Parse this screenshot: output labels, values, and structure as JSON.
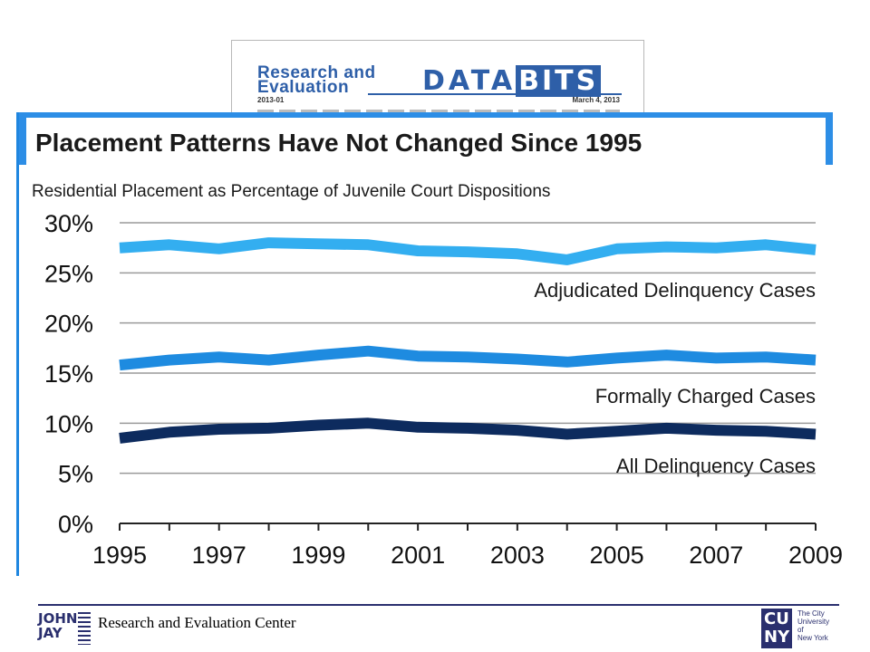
{
  "databits": {
    "title_line1": "Research and",
    "title_line2": "Evaluation",
    "logo_data": "DATA",
    "logo_bits": "BITS",
    "number": "2013-01",
    "date": "March 4, 2013"
  },
  "slide": {
    "title": "Placement Patterns Have Not Changed Since 1995",
    "subtitle": "Residential Placement as Percentage of Juvenile Court Dispositions"
  },
  "chart_data": {
    "type": "line",
    "title": "Placement Patterns Have Not Changed Since 1995",
    "subtitle": "Residential Placement as Percentage of Juvenile Court Dispositions",
    "x": [
      1995,
      1996,
      1997,
      1998,
      1999,
      2000,
      2001,
      2002,
      2003,
      2004,
      2005,
      2006,
      2007,
      2008,
      2009
    ],
    "x_tick_labels": [
      "1995",
      "1997",
      "1999",
      "2001",
      "2003",
      "2005",
      "2007",
      "2009"
    ],
    "ylim": [
      0,
      30
    ],
    "y_ticks": [
      0,
      5,
      10,
      15,
      20,
      25,
      30
    ],
    "y_tick_labels": [
      "0%",
      "5%",
      "10%",
      "15%",
      "20%",
      "25%",
      "30%"
    ],
    "grid": true,
    "series": [
      {
        "name": "Adjudicated Delinquency Cases",
        "color": "#33aef0",
        "values": [
          27.5,
          27.8,
          27.4,
          28.0,
          27.9,
          27.8,
          27.2,
          27.1,
          26.9,
          26.3,
          27.4,
          27.6,
          27.5,
          27.8,
          27.3
        ]
      },
      {
        "name": "Formally Charged Cases",
        "color": "#1e8be0",
        "values": [
          15.8,
          16.3,
          16.6,
          16.3,
          16.8,
          17.2,
          16.7,
          16.6,
          16.4,
          16.1,
          16.5,
          16.8,
          16.5,
          16.6,
          16.3
        ]
      },
      {
        "name": "All Delinquency Cases",
        "color": "#0d2b5e",
        "values": [
          8.5,
          9.1,
          9.4,
          9.5,
          9.8,
          10.0,
          9.6,
          9.5,
          9.3,
          8.9,
          9.2,
          9.5,
          9.3,
          9.2,
          8.9
        ]
      }
    ]
  },
  "footer": {
    "org_name": "Research and Evaluation Center",
    "jj_logo_line1": "JOHN",
    "jj_logo_line2": "JAY",
    "cuny_mark_line1": "CU",
    "cuny_mark_line2": "NY",
    "cuny_line1": "The City",
    "cuny_line2": "University",
    "cuny_line3": "of",
    "cuny_line4": "New York"
  }
}
